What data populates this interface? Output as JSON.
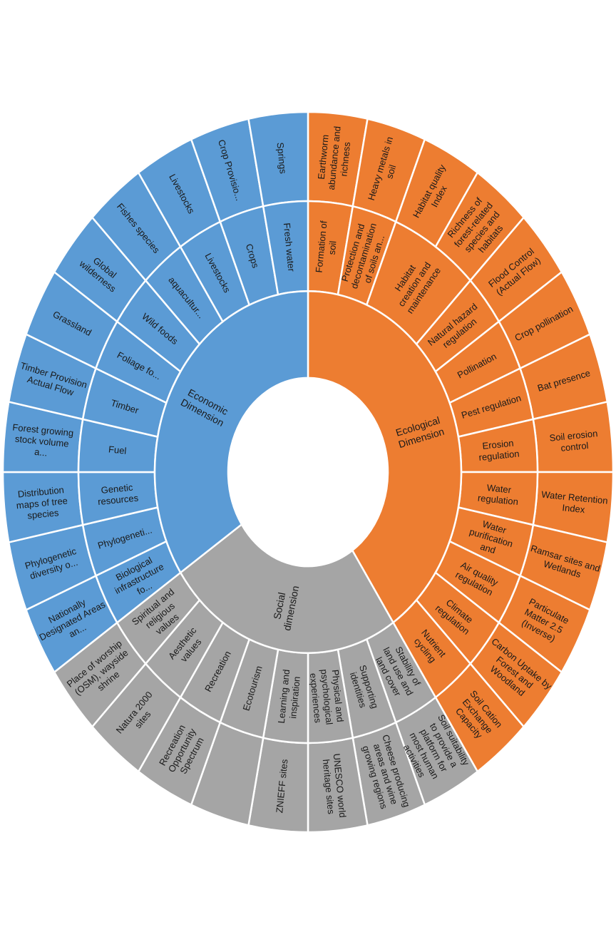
{
  "chart_data": {
    "type": "sunburst",
    "colors": {
      "ecological": "#ED7D31",
      "social": "#A5A5A5",
      "economic": "#5B9BD5",
      "separator": "#ffffff"
    },
    "dimensions": [
      {
        "name": "Ecological Dimension",
        "color_key": "ecological",
        "services": [
          {
            "name": "Formation of soil",
            "indicators": [
              "Earthworm abundance and richness"
            ]
          },
          {
            "name": "Protection and decontamination of soils an...",
            "indicators": [
              "Heavy metals in soil"
            ]
          },
          {
            "name": "Habitat creation and maintenance",
            "indicators": [
              "Habitat quality Index",
              "Richness of forest-related species and habitats"
            ]
          },
          {
            "name": "Natural hazard regulation",
            "indicators": [
              "Flood Control (Actual Flow)"
            ]
          },
          {
            "name": "Pollination",
            "indicators": [
              "Crop pollination"
            ]
          },
          {
            "name": "Pest regulation",
            "indicators": [
              "Bat presence"
            ]
          },
          {
            "name": "Erosion regulation",
            "indicators": [
              "Soil erosion control"
            ]
          },
          {
            "name": "Water regulation",
            "indicators": [
              "Water Retention Index"
            ]
          },
          {
            "name": "Water purification and",
            "indicators": [
              "Ramsar sites and Wetlands"
            ]
          },
          {
            "name": "Air quality regulation",
            "indicators": [
              "Particulate Matter 2.5 (Inverse)"
            ]
          },
          {
            "name": "Climate regulation",
            "indicators": [
              "Carbon Uptake by Forest and Woodland"
            ]
          },
          {
            "name": "Nutrient cycling",
            "indicators": [
              "Soil Cation Exchange Capacity"
            ]
          }
        ]
      },
      {
        "name": "Social dimension",
        "color_key": "social",
        "services": [
          {
            "name": "Stability of land use and land cover",
            "indicators": [
              "Soil suitability to provide a platform for most human activities"
            ]
          },
          {
            "name": "Supporting identities",
            "indicators": [
              "Cheese producing areas and wine growing regions"
            ]
          },
          {
            "name": "Physical and psychological experiences",
            "indicators": [
              "UNESCO world heritage sites"
            ]
          },
          {
            "name": "Learning and inspiration",
            "indicators": [
              "ZNIEFF sites"
            ]
          },
          {
            "name": "Ecotourism",
            "indicators": [
              ""
            ]
          },
          {
            "name": "Recreation",
            "indicators": [
              "Recreation Opportunity Spectrum"
            ]
          },
          {
            "name": "Aesthetic values",
            "indicators": [
              "Natura 2000 sites"
            ]
          },
          {
            "name": "Spiritual and religious values",
            "indicators": [
              "Place of worship (OSM), wayside shrine"
            ]
          }
        ]
      },
      {
        "name": "Economic Dimension",
        "color_key": "economic",
        "services": [
          {
            "name": "Biological infrastructure fo...",
            "indicators": [
              "Nationally Designated Areas an..."
            ]
          },
          {
            "name": "Phylogeneti...",
            "indicators": [
              "Phylogenetic diversity o..."
            ]
          },
          {
            "name": "Genetic resources",
            "indicators": [
              "Distribution maps of tree species"
            ]
          },
          {
            "name": "Fuel",
            "indicators": [
              "Forest growing stock volume a..."
            ]
          },
          {
            "name": "Timber",
            "indicators": [
              "Timber Provision Actual Flow"
            ]
          },
          {
            "name": "Foliage fo...",
            "indicators": [
              "Grassland"
            ]
          },
          {
            "name": "Wild foods",
            "indicators": [
              "Global wilderness"
            ]
          },
          {
            "name": "aquacultur...",
            "indicators": [
              "Fishes species"
            ]
          },
          {
            "name": "Livestocks",
            "indicators": [
              "Livestocks"
            ]
          },
          {
            "name": "Crops",
            "indicators": [
              "Crop Provisio..."
            ]
          },
          {
            "name": "Fresh water",
            "indicators": [
              "Springs"
            ]
          }
        ]
      }
    ]
  }
}
